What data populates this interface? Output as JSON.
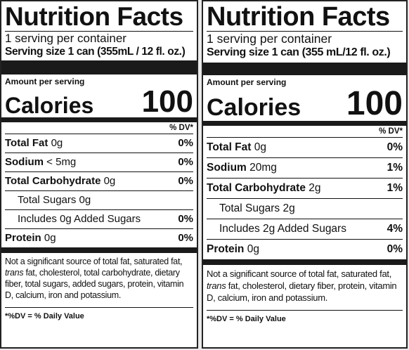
{
  "labels": [
    {
      "title": "Nutrition Facts",
      "servings": "1 serving per container",
      "serving_size": "Serving size 1 can (355mL / 12 fl. oz.)",
      "amount_per_serving": "Amount per serving",
      "calories_label": "Calories",
      "calories_value": "100",
      "dv_header": "% DV*",
      "total_fat": {
        "label": "Total Fat",
        "amount": "0g",
        "dv": "0%"
      },
      "sodium": {
        "label": "Sodium",
        "amount": "< 5mg",
        "dv": "0%"
      },
      "total_carb": {
        "label": "Total Carbohydrate",
        "amount": "0g",
        "dv": "0%"
      },
      "total_sugars": {
        "label": "Total Sugars 0g"
      },
      "added_sugars": {
        "label": "Includes 0g Added Sugars",
        "dv": "0%"
      },
      "protein": {
        "label": "Protein",
        "amount": "0g",
        "dv": "0%"
      },
      "footnote_pre": "Not a significant source of total fat, saturated fat, ",
      "footnote_italic": "trans",
      "footnote_post": " fat, cholesterol, total carbohydrate, dietary fiber, total sugars, added sugars, protein, vitamin D, calcium, iron and potassium.",
      "dv_note": "*%DV = % Daily Value"
    },
    {
      "title": "Nutrition Facts",
      "servings": "1 serving per container",
      "serving_size": "Serving size 1 can (355 mL/12 fl. oz.)",
      "amount_per_serving": "Amount per serving",
      "calories_label": "Calories",
      "calories_value": "100",
      "dv_header": "% DV*",
      "total_fat": {
        "label": "Total Fat",
        "amount": "0g",
        "dv": "0%"
      },
      "sodium": {
        "label": "Sodium",
        "amount": "20mg",
        "dv": "1%"
      },
      "total_carb": {
        "label": "Total Carbohydrate",
        "amount": "2g",
        "dv": "1%"
      },
      "total_sugars": {
        "label": "Total Sugars 2g"
      },
      "added_sugars": {
        "label": "Includes 2g Added Sugars",
        "dv": "4%"
      },
      "protein": {
        "label": "Protein",
        "amount": "0g",
        "dv": "0%"
      },
      "footnote_pre": "Not a significant source of total fat, saturated fat, ",
      "footnote_italic": "trans",
      "footnote_post": " fat, cholesterol, dietary fiber, protein, vitamin D, calcium, iron and potassium.",
      "dv_note": "*%DV = % Daily Value"
    }
  ]
}
